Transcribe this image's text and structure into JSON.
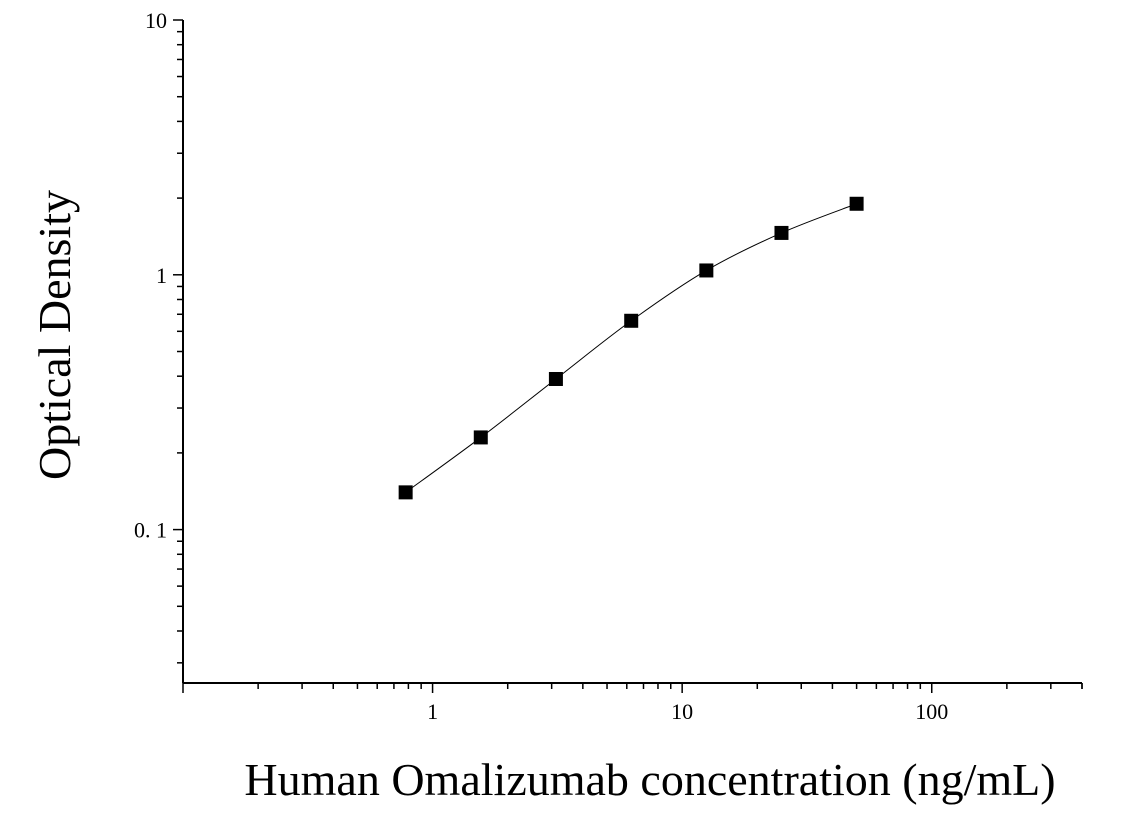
{
  "chart_data": {
    "type": "scatter",
    "title": "",
    "xlabel": "Human Omalizumab concentration (ng/mL)",
    "ylabel": "Optical Density",
    "x_scale": "log",
    "y_scale": "log",
    "xlim": [
      0.1,
      400
    ],
    "ylim": [
      0.025,
      10
    ],
    "x_tick_labels": [
      {
        "value": 1,
        "label": "1"
      },
      {
        "value": 10,
        "label": "10"
      },
      {
        "value": 100,
        "label": "100"
      }
    ],
    "y_tick_labels": [
      {
        "value": 0.1,
        "label": "0. 1"
      },
      {
        "value": 1,
        "label": "1"
      },
      {
        "value": 10,
        "label": "10"
      }
    ],
    "grid": false,
    "legend": false,
    "series": [
      {
        "x": [
          0.78,
          1.56,
          3.12,
          6.25,
          12.5,
          25,
          50
        ],
        "y": [
          0.14,
          0.23,
          0.39,
          0.66,
          1.04,
          1.46,
          1.9
        ],
        "marker": "square",
        "fit_line": true
      }
    ],
    "colors": {
      "marker": "#000000",
      "line": "#000000",
      "axis": "#000000"
    }
  }
}
